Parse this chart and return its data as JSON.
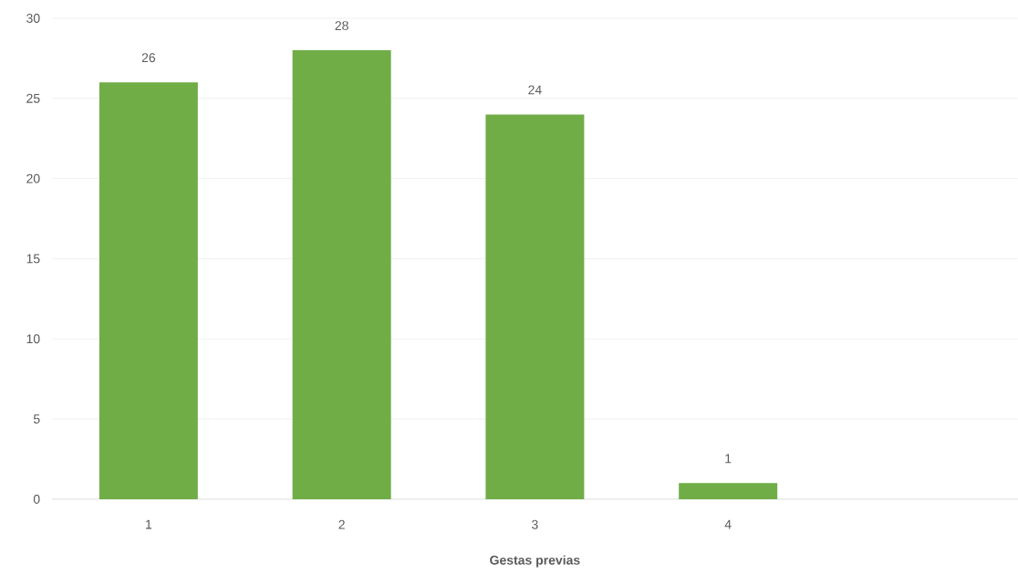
{
  "chart_data": {
    "type": "bar",
    "xlabel": "Gestas previas",
    "categories": [
      "1",
      "2",
      "3",
      "4",
      null
    ],
    "values": [
      26,
      28,
      24,
      1,
      null
    ],
    "color": "#70ad47",
    "ylim": [
      0,
      30
    ],
    "yticks": [
      0,
      5,
      10,
      15,
      20,
      25,
      30
    ],
    "grid": "y",
    "data_labels": true
  }
}
